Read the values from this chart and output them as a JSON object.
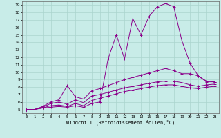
{
  "xlabel": "Windchill (Refroidissement éolien,°C)",
  "bg_color": "#c8ece8",
  "grid_color": "#aad4ce",
  "line_color": "#8b008b",
  "x_ticks": [
    0,
    1,
    2,
    3,
    4,
    5,
    6,
    7,
    8,
    9,
    10,
    11,
    12,
    13,
    14,
    15,
    16,
    17,
    18,
    19,
    20,
    21,
    22,
    23
  ],
  "y_ticks": [
    5,
    6,
    7,
    8,
    9,
    10,
    11,
    12,
    13,
    14,
    15,
    16,
    17,
    18,
    19
  ],
  "ylim": [
    4.5,
    19.5
  ],
  "xlim": [
    -0.5,
    23.5
  ],
  "lines": [
    [
      5,
      5,
      5.2,
      5.5,
      5.6,
      5.4,
      5.8,
      5.5,
      6.2,
      6.5,
      6.8,
      7.1,
      7.4,
      7.6,
      7.8,
      8.0,
      8.2,
      8.3,
      8.3,
      8.1,
      7.9,
      7.8,
      8.0,
      8.1
    ],
    [
      5,
      5,
      5.3,
      5.8,
      6.0,
      5.7,
      6.3,
      5.9,
      6.8,
      7.0,
      7.3,
      7.6,
      7.9,
      8.1,
      8.3,
      8.5,
      8.7,
      8.8,
      8.8,
      8.6,
      8.3,
      8.1,
      8.3,
      8.4
    ],
    [
      5,
      5,
      5.4,
      6.0,
      6.3,
      8.2,
      6.7,
      6.4,
      7.5,
      7.8,
      8.2,
      8.6,
      9.0,
      9.3,
      9.6,
      9.9,
      10.2,
      10.5,
      10.2,
      9.8,
      9.8,
      9.5,
      8.8,
      8.7
    ],
    [
      5,
      5,
      5.2,
      5.3,
      5.4,
      5.3,
      5.5,
      5.3,
      5.8,
      6.0,
      11.8,
      15.0,
      11.8,
      17.2,
      15.0,
      17.5,
      18.8,
      19.2,
      18.8,
      14.2,
      11.2,
      9.5,
      8.7,
      8.7
    ]
  ]
}
